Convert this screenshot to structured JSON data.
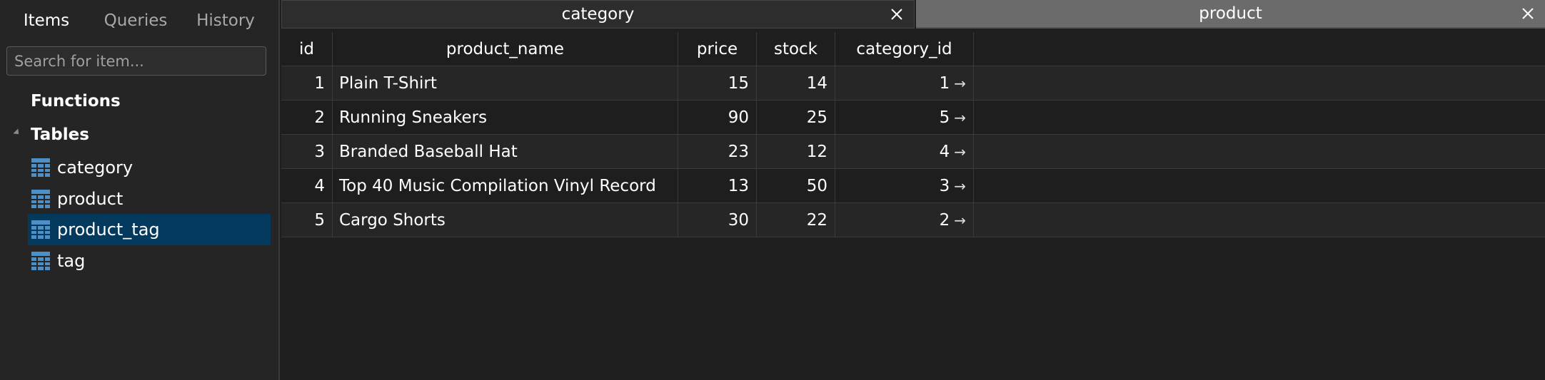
{
  "sidebar": {
    "tabs": [
      {
        "label": "Items",
        "active": true
      },
      {
        "label": "Queries",
        "active": false
      },
      {
        "label": "History",
        "active": false
      }
    ],
    "search_placeholder": "Search for item...",
    "functions_label": "Functions",
    "tables_label": "Tables",
    "tables": [
      {
        "label": "category",
        "selected": false
      },
      {
        "label": "product",
        "selected": false
      },
      {
        "label": "product_tag",
        "selected": true
      },
      {
        "label": "tag",
        "selected": false
      }
    ]
  },
  "editor_tabs": [
    {
      "label": "category",
      "active": false
    },
    {
      "label": "product",
      "active": true
    }
  ],
  "grid": {
    "columns": [
      "id",
      "product_name",
      "price",
      "stock",
      "category_id"
    ],
    "rows": [
      [
        "1",
        "Plain T-Shirt",
        "15",
        "14",
        "1"
      ],
      [
        "2",
        "Running Sneakers",
        "90",
        "25",
        "5"
      ],
      [
        "3",
        "Branded Baseball Hat",
        "23",
        "12",
        "4"
      ],
      [
        "4",
        "Top 40 Music Compilation Vinyl Record",
        "13",
        "50",
        "3"
      ],
      [
        "5",
        "Cargo Shorts",
        "30",
        "22",
        "2"
      ]
    ],
    "fk_arrow": "→"
  },
  "colors": {
    "background": "#1e1e1e",
    "sidebar": "#252526",
    "selection": "#04395e",
    "table_icon": "#4d90c8",
    "active_tab": "#6b6b6b"
  }
}
